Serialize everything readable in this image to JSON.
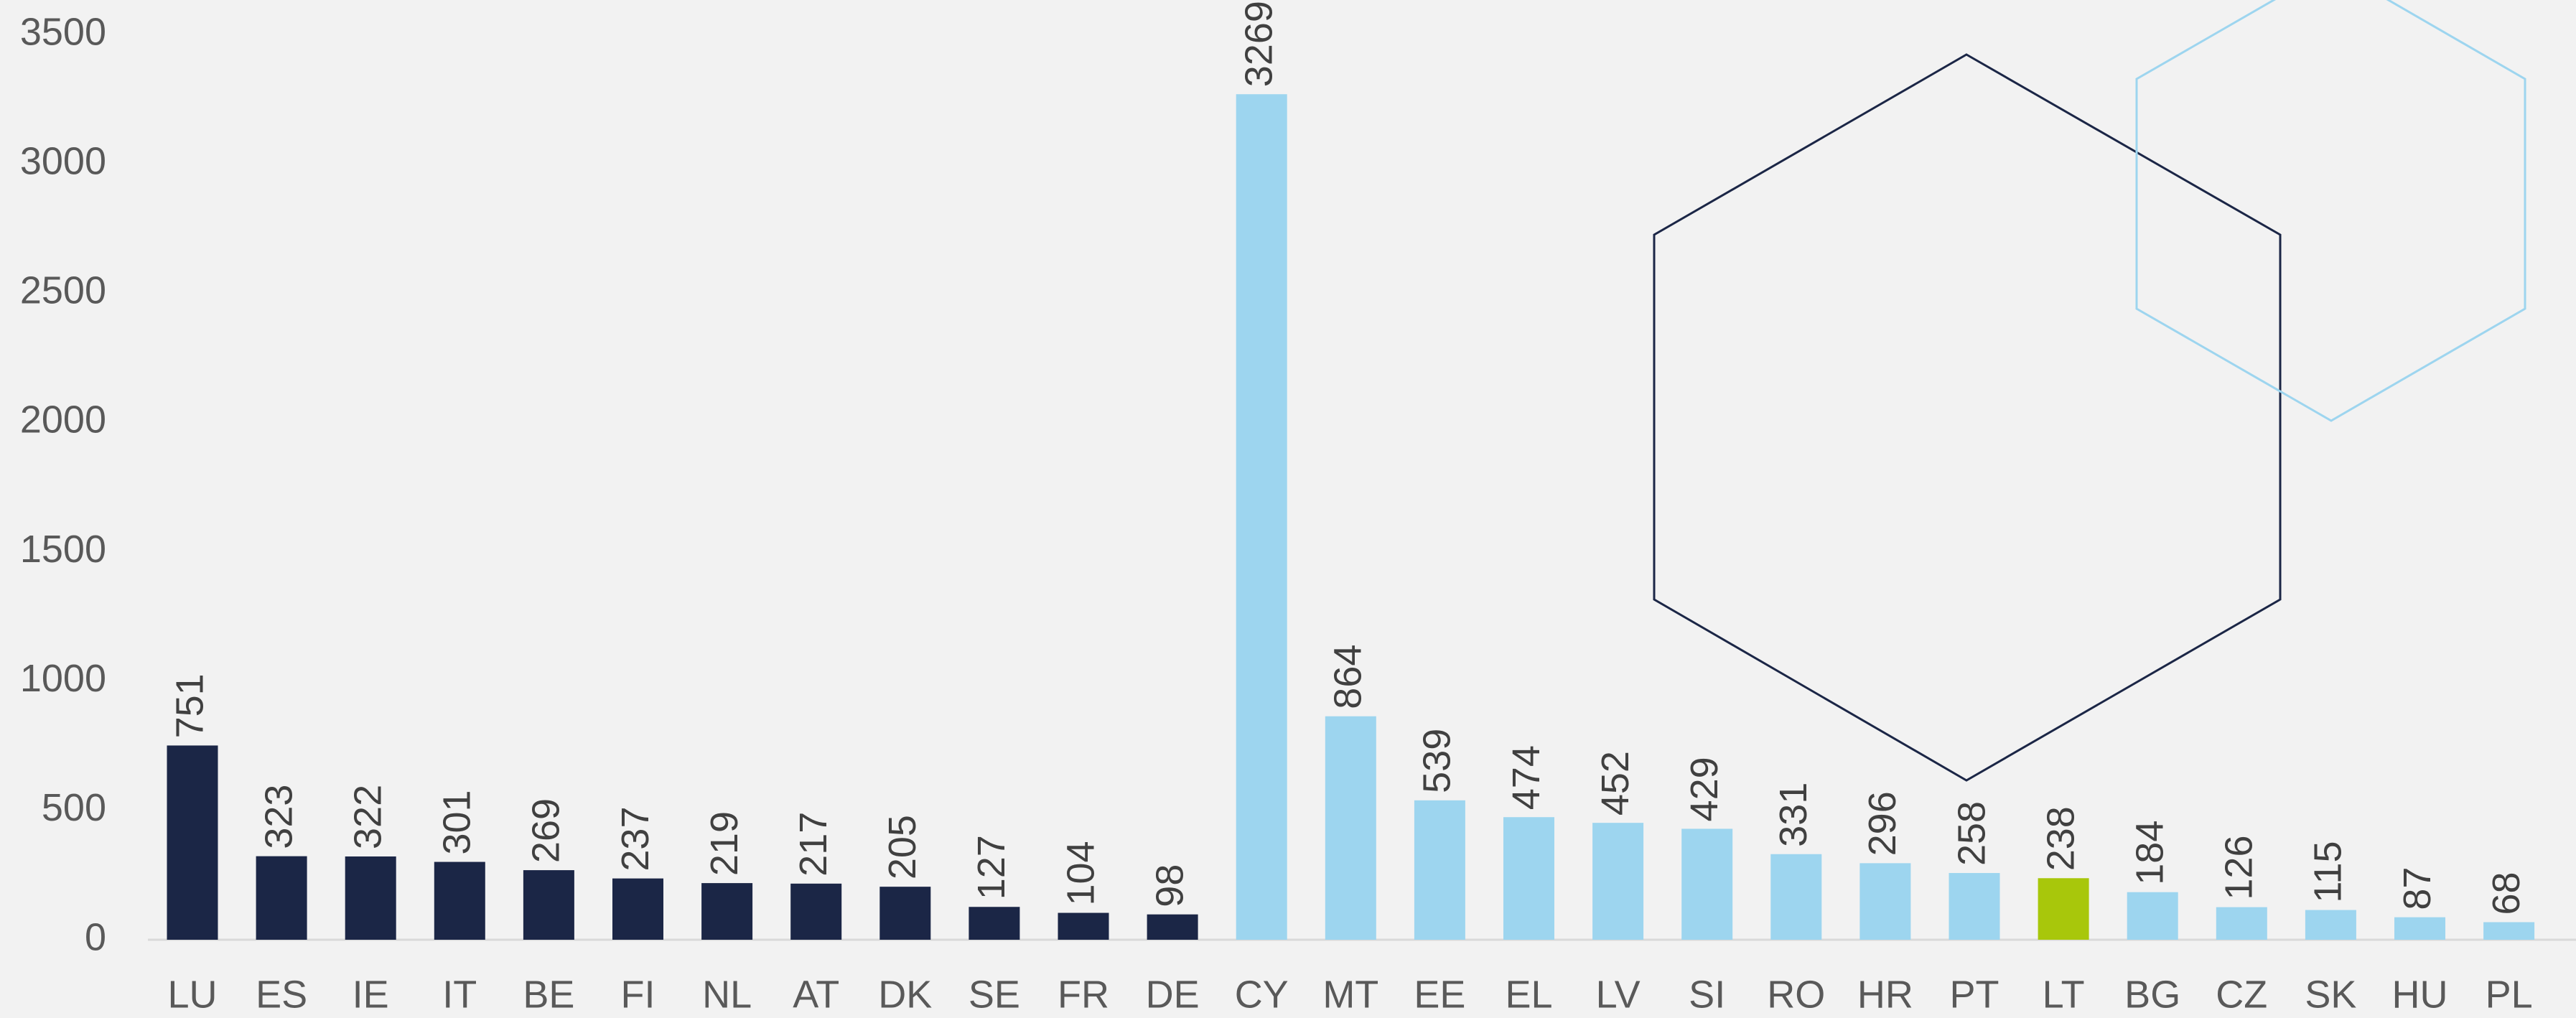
{
  "chart_data": {
    "type": "bar",
    "categories": [
      "LU",
      "ES",
      "IE",
      "IT",
      "BE",
      "FI",
      "NL",
      "AT",
      "DK",
      "SE",
      "FR",
      "DE",
      "CY",
      "MT",
      "EE",
      "EL",
      "LV",
      "SI",
      "RO",
      "HR",
      "PT",
      "LT",
      "BG",
      "CZ",
      "SK",
      "HU",
      "PL"
    ],
    "values": [
      751,
      323,
      322,
      301,
      269,
      237,
      219,
      217,
      205,
      127,
      104,
      98,
      3269,
      864,
      539,
      474,
      452,
      429,
      331,
      296,
      258,
      238,
      184,
      126,
      115,
      87,
      68
    ],
    "colors": [
      "#1b2646",
      "#1b2646",
      "#1b2646",
      "#1b2646",
      "#1b2646",
      "#1b2646",
      "#1b2646",
      "#1b2646",
      "#1b2646",
      "#1b2646",
      "#1b2646",
      "#1b2646",
      "#9dd5ef",
      "#9dd5ef",
      "#9dd5ef",
      "#9dd5ef",
      "#9dd5ef",
      "#9dd5ef",
      "#9dd5ef",
      "#9dd5ef",
      "#9dd5ef",
      "#a8c70b",
      "#9dd5ef",
      "#9dd5ef",
      "#9dd5ef",
      "#9dd5ef",
      "#9dd5ef"
    ],
    "ylim": [
      0,
      3500
    ],
    "yticks": [
      0,
      500,
      1000,
      1500,
      2000,
      2500,
      3000,
      3500
    ],
    "grid": false
  }
}
